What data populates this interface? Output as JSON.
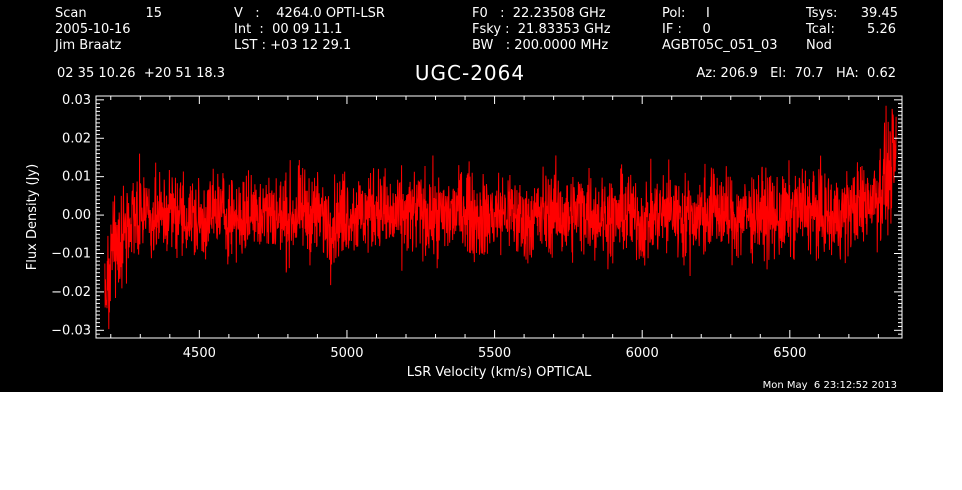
{
  "header": {
    "col1": {
      "scan_label": "Scan",
      "scan_value": "15",
      "date": "2005-10-16",
      "observer": "Jim Braatz"
    },
    "col2": {
      "v_line": "V   :    4264.0 OPTI-LSR",
      "int_line": "Int  :  00 09 11.1",
      "lst_line": "LST : +03 12 29.1"
    },
    "col3": {
      "f0_line": "F0   :  22.23508 GHz",
      "fsky_line": "Fsky :  21.83353 GHz",
      "bw_line": "BW   : 200.0000 MHz"
    },
    "col4": {
      "pol_line": "Pol:     I",
      "if_line": "IF :     0",
      "project": "AGBT05C_051_03"
    },
    "col5": {
      "tsys_label": "Tsys:",
      "tsys_value": "39.45",
      "tcal_label": "Tcal:",
      "tcal_value": "5.26",
      "mode": "Nod"
    },
    "coords": "02 35 10.26  +20 51 18.3",
    "source": "UGC-2064",
    "pointing": "Az: 206.9   El:  70.7   HA:  0.62"
  },
  "timestamp": "Mon May  6 23:12:52 2013",
  "colors": {
    "background": "#000000",
    "axes": "#ffffff",
    "spectrum": "#ff0000",
    "text": "#ffffff"
  },
  "chart_data": {
    "type": "line",
    "title": "UGC-2064",
    "xlabel": "LSR Velocity (km/s) OPTICAL",
    "ylabel": "Flux Density (Jy)",
    "xlim": [
      4150,
      6880
    ],
    "ylim": [
      -0.032,
      0.031
    ],
    "xticks": [
      4500,
      5000,
      5500,
      6000,
      6500
    ],
    "xtick_labels": [
      "4500",
      "5000",
      "5500",
      "6000",
      "6500"
    ],
    "yticks": [
      -0.03,
      -0.02,
      -0.01,
      0.0,
      0.01,
      0.02,
      0.03
    ],
    "ytick_labels": [
      "−0.03",
      "−0.02",
      "−0.01",
      "0.00",
      "0.01",
      "0.02",
      "0.03"
    ],
    "grid": false,
    "series": [
      {
        "color": "#ff0000",
        "description": "Noise-dominated spectrum centred near 0 Jy, typical range ±0.01 Jy, with a dip to about −0.02 at the low-velocity edge and a rise to about +0.023 at the high-velocity edge",
        "x": [
          4180,
          4200,
          4250,
          4300,
          4350,
          4400,
          4450,
          4500,
          4550,
          4600,
          4650,
          4700,
          4750,
          4800,
          4850,
          4900,
          4950,
          5000,
          5050,
          5100,
          5150,
          5200,
          5250,
          5300,
          5350,
          5400,
          5450,
          5500,
          5550,
          5600,
          5650,
          5700,
          5750,
          5800,
          5850,
          5900,
          5950,
          6000,
          6050,
          6100,
          6150,
          6200,
          6250,
          6300,
          6350,
          6400,
          6450,
          6500,
          6550,
          6600,
          6650,
          6700,
          6750,
          6800,
          6830,
          6860
        ],
        "y": [
          -0.019,
          -0.012,
          -0.004,
          0.002,
          -0.001,
          0.001,
          0.0,
          -0.002,
          0.001,
          0.0,
          -0.001,
          0.002,
          0.0,
          -0.001,
          0.001,
          0.0,
          -0.002,
          0.001,
          0.0,
          0.002,
          -0.001,
          0.0,
          0.001,
          -0.001,
          0.0,
          0.002,
          -0.001,
          0.0,
          0.001,
          -0.002,
          0.0,
          0.001,
          -0.001,
          0.002,
          0.0,
          -0.001,
          0.001,
          -0.002,
          0.0,
          0.001,
          -0.001,
          0.0,
          0.002,
          -0.001,
          0.0,
          0.001,
          -0.001,
          0.0,
          0.002,
          0.0,
          -0.001,
          0.001,
          0.003,
          0.006,
          0.01,
          0.015
        ]
      }
    ]
  }
}
